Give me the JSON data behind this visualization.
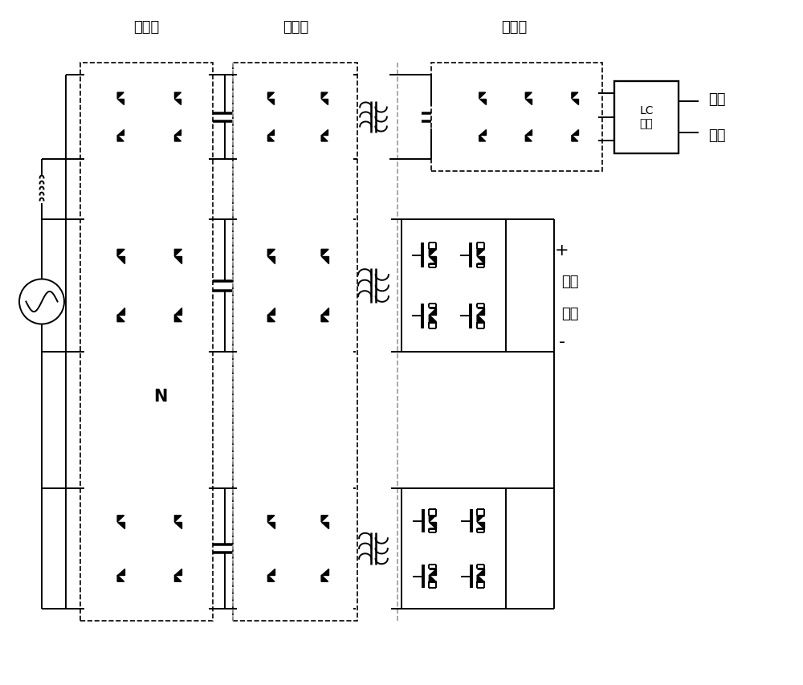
{
  "bg_color": "#ffffff",
  "lc": "black",
  "lw": 1.4,
  "dash_color": "#999999",
  "labels": {
    "input": "输入级",
    "middle": "中间级",
    "output": "输出级",
    "lc_filter": "LC\n滤波",
    "ac1": "交流",
    "ac2": "微网",
    "dc1": "直流",
    "dc2": "微网",
    "N": "N",
    "plus": "+",
    "minus": "-"
  },
  "fontsize_label": 13,
  "fontsize_small": 10
}
